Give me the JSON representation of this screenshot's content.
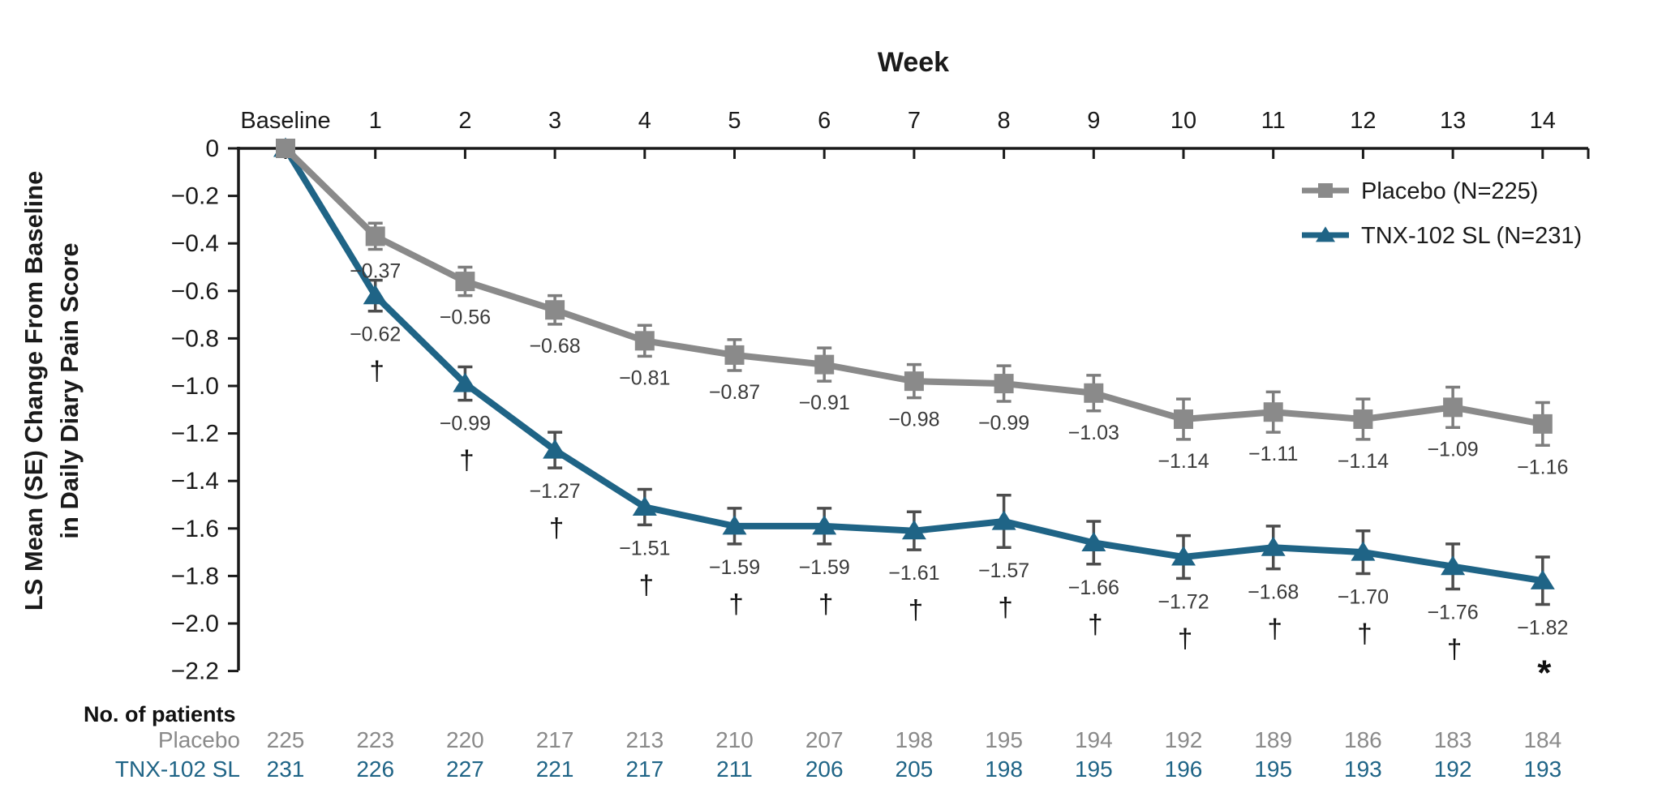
{
  "figure_title": "Week",
  "chart_data": {
    "type": "line",
    "title": "",
    "xlabel": "Week",
    "ylabel": "LS Mean (SE) Change From Baseline in Daily Diary Pain Score",
    "ylabel_line1": "LS Mean (SE) Change From Baseline",
    "ylabel_line2": "in Daily Diary Pain Score",
    "grid": false,
    "legend_position": "top-right",
    "x_axis": {
      "title": "Week",
      "categories": [
        "Baseline",
        "1",
        "2",
        "3",
        "4",
        "5",
        "6",
        "7",
        "8",
        "9",
        "10",
        "11",
        "12",
        "13",
        "14"
      ]
    },
    "y_axis": {
      "range": [
        0,
        -2.2
      ],
      "tick_values": [
        0,
        -0.2,
        -0.4,
        -0.6,
        -0.8,
        -1.0,
        -1.2,
        -1.4,
        -1.6,
        -1.8,
        -2.0,
        -2.2
      ],
      "tick_labels": [
        "0",
        "−0.2",
        "−0.4",
        "−0.6",
        "−0.8",
        "−1.0",
        "−1.2",
        "−1.4",
        "−1.6",
        "−1.8",
        "−2.0",
        "−2.2"
      ]
    },
    "colors": {
      "axis": "#1a1a1a",
      "data_label": "#3b3b3b",
      "annotation": "#111111",
      "placebo": "#8a8a8a",
      "tnx": "#1f6486"
    },
    "series": [
      {
        "name": "Placebo (N=225)",
        "short_name": "Placebo",
        "marker": "square",
        "color": "#8a8a8a",
        "error_bar_color": "#7d7d7d",
        "values": [
          0,
          -0.37,
          -0.56,
          -0.68,
          -0.81,
          -0.87,
          -0.91,
          -0.98,
          -0.99,
          -1.03,
          -1.14,
          -1.11,
          -1.14,
          -1.09,
          -1.16
        ],
        "se": [
          0,
          0.055,
          0.06,
          0.06,
          0.065,
          0.065,
          0.07,
          0.07,
          0.075,
          0.075,
          0.085,
          0.085,
          0.085,
          0.085,
          0.09
        ],
        "point_labels": [
          "",
          "−0.37",
          "−0.56",
          "−0.68",
          "−0.81",
          "−0.87",
          "−0.91",
          "−0.98",
          "−0.99",
          "−1.03",
          "−1.14",
          "−1.11",
          "−1.14",
          "−1.09",
          "−1.16"
        ],
        "annotations": [
          "",
          "",
          "",
          "",
          "",
          "",
          "",
          "",
          "",
          "",
          "",
          "",
          "",
          "",
          ""
        ]
      },
      {
        "name": "TNX-102 SL (N=231)",
        "short_name": "TNX-102 SL",
        "marker": "triangle",
        "color": "#1f6486",
        "error_bar_color": "#4d4d4d",
        "values": [
          0,
          -0.62,
          -0.99,
          -1.27,
          -1.51,
          -1.59,
          -1.59,
          -1.61,
          -1.57,
          -1.66,
          -1.72,
          -1.68,
          -1.7,
          -1.76,
          -1.82
        ],
        "se": [
          0,
          0.065,
          0.07,
          0.075,
          0.075,
          0.075,
          0.075,
          0.08,
          0.11,
          0.09,
          0.09,
          0.09,
          0.09,
          0.095,
          0.1
        ],
        "point_labels": [
          "",
          "−0.62",
          "−0.99",
          "−1.27",
          "−1.51",
          "−1.59",
          "−1.59",
          "−1.61",
          "−1.57",
          "−1.66",
          "−1.72",
          "−1.68",
          "−1.70",
          "−1.76",
          "−1.82"
        ],
        "annotations": [
          "",
          "†",
          "†",
          "†",
          "†",
          "†",
          "†",
          "†",
          "†",
          "†",
          "†",
          "†",
          "†",
          "†",
          "*"
        ]
      }
    ],
    "patients_table": {
      "header": "No. of patients",
      "rows": [
        {
          "label": "Placebo",
          "color": "#8a8a8a",
          "values": [
            "225",
            "223",
            "220",
            "217",
            "213",
            "210",
            "207",
            "198",
            "195",
            "194",
            "192",
            "189",
            "186",
            "183",
            "184"
          ]
        },
        {
          "label": "TNX-102 SL",
          "color": "#1f6486",
          "values": [
            "231",
            "226",
            "227",
            "221",
            "217",
            "211",
            "206",
            "205",
            "198",
            "195",
            "196",
            "195",
            "193",
            "192",
            "193"
          ]
        }
      ]
    }
  }
}
